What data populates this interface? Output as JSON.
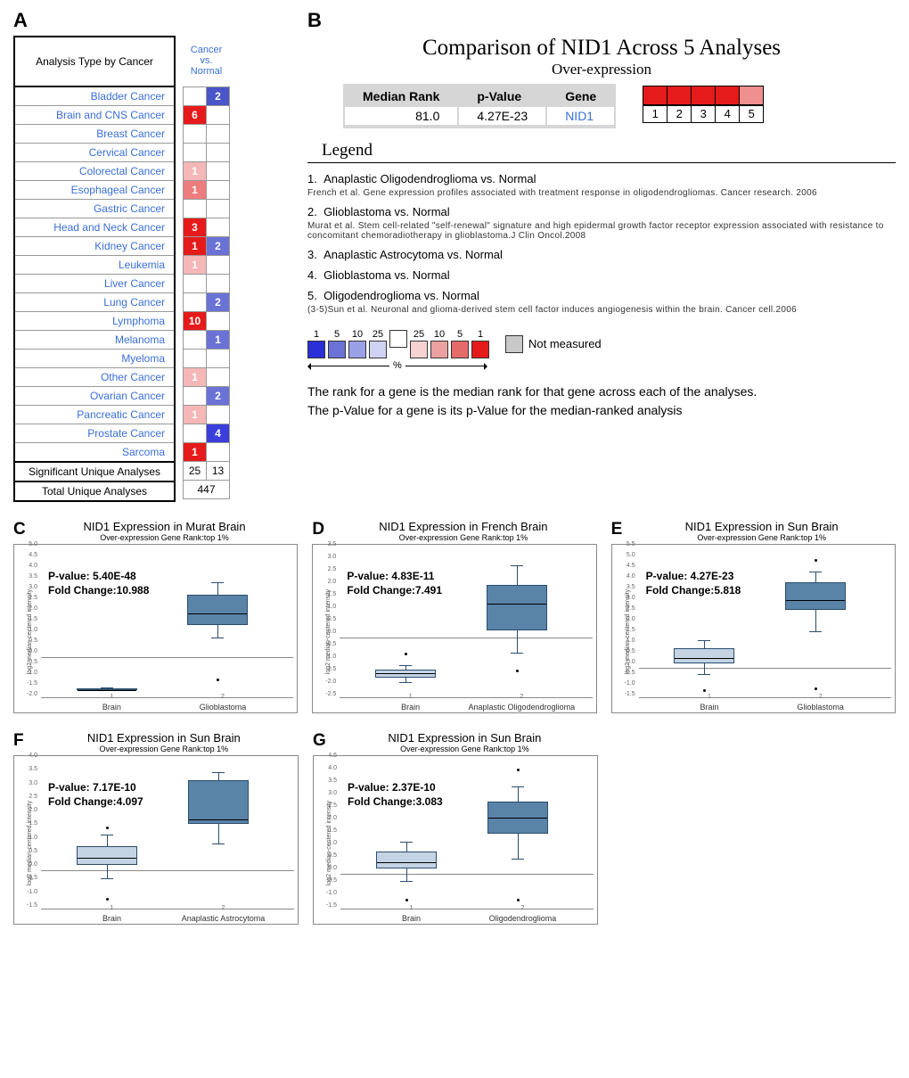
{
  "panelA": {
    "label": "A",
    "header_left": "Analysis Type by Cancer",
    "header_right": "Cancer vs. Normal",
    "rows": [
      {
        "name": "Bladder Cancer",
        "up": "",
        "up_col": "#ffffff",
        "down": "2",
        "down_col": "#4a55c8"
      },
      {
        "name": "Brain and CNS Cancer",
        "up": "6",
        "up_col": "#e51b1b",
        "down": "",
        "down_col": "#ffffff"
      },
      {
        "name": "Breast Cancer",
        "up": "",
        "up_col": "#ffffff",
        "down": "",
        "down_col": "#ffffff"
      },
      {
        "name": "Cervical Cancer",
        "up": "",
        "up_col": "#ffffff",
        "down": "",
        "down_col": "#ffffff"
      },
      {
        "name": "Colorectal Cancer",
        "up": "1",
        "up_col": "#f5b7b7",
        "down": "",
        "down_col": "#ffffff"
      },
      {
        "name": "Esophageal Cancer",
        "up": "1",
        "up_col": "#ed7c7c",
        "down": "",
        "down_col": "#ffffff"
      },
      {
        "name": "Gastric Cancer",
        "up": "",
        "up_col": "#ffffff",
        "down": "",
        "down_col": "#ffffff"
      },
      {
        "name": "Head and Neck Cancer",
        "up": "3",
        "up_col": "#e51b1b",
        "down": "",
        "down_col": "#ffffff"
      },
      {
        "name": "Kidney Cancer",
        "up": "1",
        "up_col": "#e51b1b",
        "down": "2",
        "down_col": "#6a72d6"
      },
      {
        "name": "Leukemia",
        "up": "1",
        "up_col": "#f5b7b7",
        "down": "",
        "down_col": "#ffffff"
      },
      {
        "name": "Liver Cancer",
        "up": "",
        "up_col": "#ffffff",
        "down": "",
        "down_col": "#ffffff"
      },
      {
        "name": "Lung Cancer",
        "up": "",
        "up_col": "#ffffff",
        "down": "2",
        "down_col": "#6a72d6"
      },
      {
        "name": "Lymphoma",
        "up": "10",
        "up_col": "#e51b1b",
        "down": "",
        "down_col": "#ffffff"
      },
      {
        "name": "Melanoma",
        "up": "",
        "up_col": "#ffffff",
        "down": "1",
        "down_col": "#6a72d6"
      },
      {
        "name": "Myeloma",
        "up": "",
        "up_col": "#ffffff",
        "down": "",
        "down_col": "#ffffff"
      },
      {
        "name": "Other Cancer",
        "up": "1",
        "up_col": "#f5b7b7",
        "down": "",
        "down_col": "#ffffff"
      },
      {
        "name": "Ovarian Cancer",
        "up": "",
        "up_col": "#ffffff",
        "down": "2",
        "down_col": "#6a72d6"
      },
      {
        "name": "Pancreatic Cancer",
        "up": "1",
        "up_col": "#f5b7b7",
        "down": "",
        "down_col": "#ffffff"
      },
      {
        "name": "Prostate Cancer",
        "up": "",
        "up_col": "#ffffff",
        "down": "4",
        "down_col": "#3a3fdc"
      },
      {
        "name": "Sarcoma",
        "up": "1",
        "up_col": "#e51b1b",
        "down": "",
        "down_col": "#ffffff"
      }
    ],
    "sig_label": "Significant Unique Analyses",
    "sig_up": "25",
    "sig_down": "13",
    "tot_label": "Total Unique Analyses",
    "tot": "447"
  },
  "panelB": {
    "label": "B",
    "title": "Comparison of NID1 Across 5 Analyses",
    "subtitle": "Over-expression",
    "col_median": "Median Rank",
    "col_pval": "p-Value",
    "col_gene": "Gene",
    "median": "81.0",
    "pval": "4.27E-23",
    "gene": "NID1",
    "box_colors": [
      "#e51b1b",
      "#e51b1b",
      "#e51b1b",
      "#e51b1b",
      "#ef8f8f"
    ],
    "box_nums": [
      "1",
      "2",
      "3",
      "4",
      "5"
    ],
    "legend_title": "Legend",
    "items": [
      {
        "n": "1.",
        "t": "Anaplastic Oligodendroglioma vs. Normal",
        "ref": "French et al. Gene expression profiles associated with treatment response in oligodendrogliomas. Cancer research. 2006"
      },
      {
        "n": "2.",
        "t": "Glioblastoma vs. Normal",
        "ref": "Murat et al. Stem cell-related \"self-renewal\" signature and high epidermal growth factor receptor expression associated with resistance to concomitant chemoradiotherapy in glioblastoma.J Clin Oncol.2008"
      },
      {
        "n": "3.",
        "t": "Anaplastic Astrocytoma vs. Normal",
        "ref": ""
      },
      {
        "n": "4.",
        "t": "Glioblastoma vs. Normal",
        "ref": ""
      },
      {
        "n": "5.",
        "t": "Oligodendroglioma vs. Normal",
        "ref": "(3-5)Sun et al. Neuronal and glioma-derived stem cell factor induces angiogenesis within the brain. Cancer cell.2006"
      }
    ],
    "scale_nums": [
      "1",
      "5",
      "10",
      "25",
      "",
      "25",
      "10",
      "5",
      "1"
    ],
    "scale_cols": [
      "#2a2fd8",
      "#6a72d6",
      "#9aa0e6",
      "#cfd2f2",
      "#ffffff",
      "#f6d2d2",
      "#eda0a0",
      "#e56a6a",
      "#e51b1b"
    ],
    "not_measured": "Not measured",
    "nm_col": "#c9c9c9",
    "pct": "%",
    "note1": "The rank for a gene is the median rank for that gene across each of the analyses.",
    "note2": "The p-Value for a gene is its p-Value for the median-ranked analysis"
  },
  "boxplots": [
    {
      "label": "C",
      "title": "NID1 Expression in Murat Brain",
      "sub": "Over-expression Gene Rank:top 1%",
      "pval": "P-value: 5.40E-48",
      "fc": "Fold Change:10.988",
      "ymin": -2.0,
      "ymax": 5.0,
      "ticks": [
        -2.0,
        -1.5,
        -1.0,
        -0.5,
        0,
        0.5,
        1.0,
        1.5,
        2.0,
        2.5,
        3.0,
        3.5,
        4.0,
        4.5,
        5.0
      ],
      "x1": "Brain",
      "x2": "Glioblastoma",
      "b1": {
        "q1": -1.5,
        "med": -1.5,
        "q3": -1.45,
        "lo": -1.55,
        "hi": -1.4,
        "col": "#c4d4e4"
      },
      "b2": {
        "q1": 1.5,
        "med": 2.1,
        "q3": 2.9,
        "lo": 0.9,
        "hi": 3.5,
        "col": "#5a83a8",
        "out": [
          -1.0
        ]
      }
    },
    {
      "label": "D",
      "title": "NID1 Expression in French Brain",
      "sub": "Over-expression Gene Rank:top 1%",
      "pval": "P-value: 4.83E-11",
      "fc": "Fold Change:7.491",
      "ymin": -2.5,
      "ymax": 3.5,
      "ticks": [
        -2.5,
        -2.0,
        -1.5,
        -1.0,
        -0.5,
        0,
        0.5,
        1.0,
        1.5,
        2.0,
        2.5,
        3.0,
        3.5
      ],
      "x1": "Brain",
      "x2": "Anaplastic Oligodendroglioma",
      "b1": {
        "q1": -1.6,
        "med": -1.4,
        "q3": -1.3,
        "lo": -1.8,
        "hi": -1.1,
        "col": "#c4d4e4",
        "out": [
          -0.6
        ]
      },
      "b2": {
        "q1": 0.3,
        "med": 1.4,
        "q3": 2.1,
        "lo": -0.6,
        "hi": 2.9,
        "col": "#5a83a8",
        "out": [
          -1.3
        ]
      }
    },
    {
      "label": "E",
      "title": "NID1 Expression in Sun Brain",
      "sub": "Over-expression Gene Rank:top 1%",
      "pval": "P-value: 4.27E-23",
      "fc": "Fold Change:5.818",
      "ymin": -1.5,
      "ymax": 5.5,
      "ticks": [
        -1.5,
        -1.0,
        -0.5,
        0,
        0.5,
        1.0,
        1.5,
        2.0,
        2.5,
        3.0,
        3.5,
        4.0,
        4.5,
        5.0,
        5.5
      ],
      "x1": "Brain",
      "x2": "Glioblastoma",
      "b1": {
        "q1": 0.2,
        "med": 0.5,
        "q3": 0.9,
        "lo": -0.3,
        "hi": 1.3,
        "col": "#c4d4e4",
        "out": [
          -1.0
        ]
      },
      "b2": {
        "q1": 2.7,
        "med": 3.2,
        "q3": 4.0,
        "lo": 1.7,
        "hi": 4.5,
        "col": "#5a83a8",
        "out": [
          5.1,
          -0.9
        ]
      }
    },
    {
      "label": "F",
      "title": "NID1 Expression in Sun Brain",
      "sub": "Over-expression Gene Rank:top 1%",
      "pval": "P-value: 7.17E-10",
      "fc": "Fold Change:4.097",
      "ymin": -1.5,
      "ymax": 4.0,
      "ticks": [
        -1.5,
        -1.0,
        -0.5,
        0,
        0.5,
        1.0,
        1.5,
        2.0,
        2.5,
        3.0,
        3.5,
        4.0
      ],
      "x1": "Brain",
      "x2": "Anaplastic Astrocytoma",
      "b1": {
        "q1": 0.2,
        "med": 0.5,
        "q3": 0.9,
        "lo": -0.3,
        "hi": 1.3,
        "col": "#c4d4e4",
        "out": [
          -1.0,
          1.6
        ]
      },
      "b2": {
        "q1": 1.7,
        "med": 1.9,
        "q3": 3.3,
        "lo": 1.0,
        "hi": 3.6,
        "col": "#5a83a8",
        "out": []
      }
    },
    {
      "label": "G",
      "title": "NID1 Expression in Sun Brain",
      "sub": "Over-expression Gene Rank:top 1%",
      "pval": "P-value: 2.37E-10",
      "fc": "Fold Change:3.083",
      "ymin": -1.5,
      "ymax": 4.5,
      "ticks": [
        -1.5,
        -1.0,
        -0.5,
        0,
        0.5,
        1.0,
        1.5,
        2.0,
        2.5,
        3.0,
        3.5,
        4.0,
        4.5
      ],
      "x1": "Brain",
      "x2": "Oligodendroglioma",
      "b1": {
        "q1": 0.2,
        "med": 0.5,
        "q3": 0.9,
        "lo": -0.3,
        "hi": 1.3,
        "col": "#c4d4e4",
        "out": [
          -1.0
        ]
      },
      "b2": {
        "q1": 1.6,
        "med": 2.3,
        "q3": 2.9,
        "lo": 0.6,
        "hi": 3.5,
        "col": "#5a83a8",
        "out": [
          4.2,
          -1.0
        ]
      }
    }
  ]
}
